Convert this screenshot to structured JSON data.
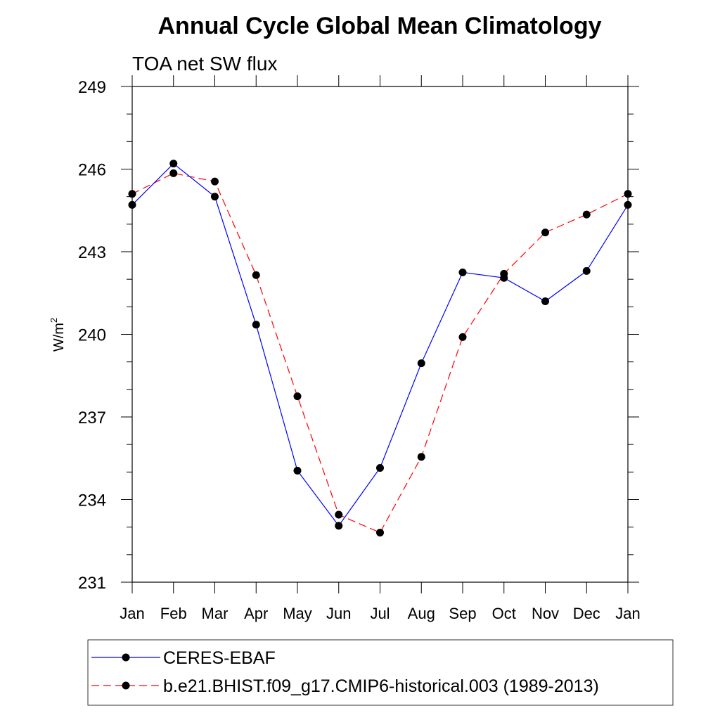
{
  "chart_data": {
    "type": "line",
    "title": "Annual Cycle Global Mean Climatology",
    "subtitle": "TOA net SW flux",
    "ylabel": "W/m",
    "ylabel_superscript": "2",
    "categories": [
      "Jan",
      "Feb",
      "Mar",
      "Apr",
      "May",
      "Jun",
      "Jul",
      "Aug",
      "Sep",
      "Oct",
      "Nov",
      "Dec",
      "Jan"
    ],
    "ylim": [
      231,
      249
    ],
    "yticks": [
      "231",
      "234",
      "237",
      "240",
      "243",
      "246",
      "249"
    ],
    "series": [
      {
        "name": "CERES-EBAF",
        "color": "#0000ff",
        "style": "solid",
        "values": [
          244.7,
          246.2,
          245.0,
          240.35,
          235.05,
          233.05,
          235.15,
          238.95,
          242.25,
          242.05,
          241.2,
          242.3,
          244.7
        ]
      },
      {
        "name": "b.e21.BHIST.f09_g17.CMIP6-historical.003 (1989-2013)",
        "color": "#ff0000",
        "style": "dashed",
        "values": [
          245.1,
          245.85,
          245.55,
          242.15,
          237.75,
          233.45,
          232.8,
          235.55,
          239.9,
          242.2,
          243.7,
          244.35,
          245.1
        ]
      }
    ],
    "grid": false,
    "legend_position": "bottom"
  }
}
